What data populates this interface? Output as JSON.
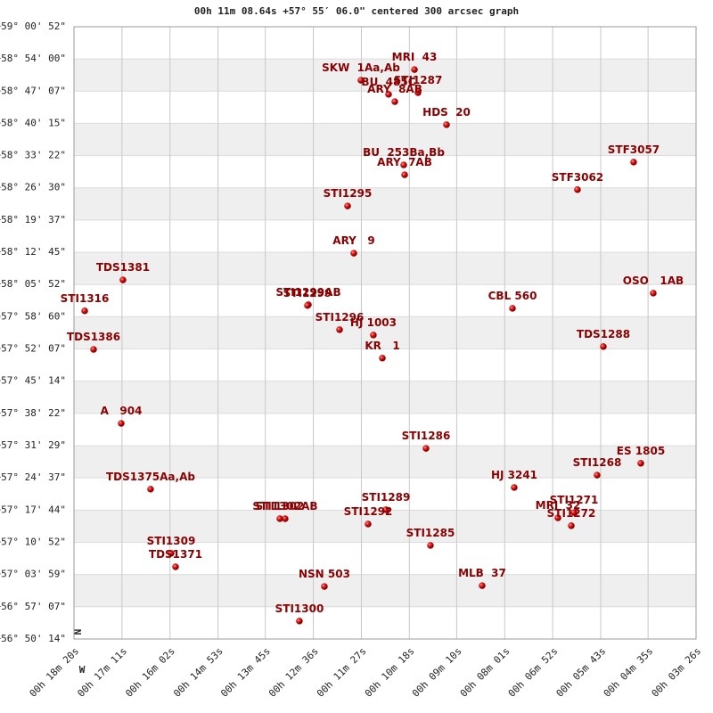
{
  "chart_data": {
    "type": "scatter",
    "title": "00h 11m 08.64s +57° 55′ 06.0\" centered 300 arcsec graph",
    "north_label": "N",
    "west_label": "W",
    "color": "#cc0000",
    "label_color": "#8b0000",
    "labels": [
      "MRI  43",
      "SKW  1Aa,Ab",
      "BU  485C",
      "STI1287",
      "ARY  8AB",
      "HDS  20",
      "BU  253Ba,Bb",
      "ARY  7AB",
      "STF3057",
      "STF3062",
      "STI1295",
      "ARY   9",
      "TDS1381",
      "OSO   1AB",
      "STI1316",
      "STI1299AB",
      "STI1299",
      "CBL 560",
      "STI1296",
      "HJ 1003",
      "KR   1",
      "TDS1288",
      "TDS1386",
      "A   904",
      "STI1286",
      "ES 1805",
      "STI1268",
      "HJ 3241",
      "TDS1375Aa,Ab",
      "STI1289",
      "STI1271",
      "MRI  32",
      "STI1272",
      "STI1302AB",
      "STI1302",
      "STI1292",
      "STI1285",
      "STI1309",
      "TDS1371",
      "NSN 503",
      "MLB  37",
      "STI1300"
    ],
    "x": [
      610.7,
      687.6,
      647.9,
      605.6,
      638.9,
      564.6,
      626.1,
      624.8,
      295.7,
      376.4,
      706.8,
      697.8,
      1029.6,
      267.5,
      1084.6,
      763.1,
      764.4,
      469.8,
      718.3,
      669.7,
      656.8,
      339.2,
      1071.8,
      1032.1,
      594.1,
      285.4,
      348.2,
      467.3,
      989.9,
      651.7,
      381.5,
      404.5,
      385.3,
      796.5,
      804.1,
      677.3,
      587.7,
      960.4,
      954.0,
      740.1,
      513.4,
      776.0
    ],
    "values": [
      58.862,
      58.824,
      58.774,
      58.78,
      58.748,
      58.666,
      58.523,
      58.488,
      58.533,
      58.435,
      58.377,
      58.209,
      58.114,
      58.067,
      58.004,
      58.026,
      58.023,
      58.013,
      57.937,
      57.918,
      57.836,
      57.877,
      57.867,
      57.604,
      57.515,
      57.462,
      57.42,
      57.376,
      57.37,
      57.297,
      57.287,
      57.268,
      57.24,
      57.265,
      57.265,
      57.246,
      57.17,
      57.142,
      57.094,
      57.024,
      57.027,
      56.901
    ],
    "xlim": [
      1100,
      206
    ],
    "xticks": [
      {
        "value": 1100,
        "label": "00h 18m 20s"
      },
      {
        "value": 1031,
        "label": "00h 17m 11s"
      },
      {
        "value": 962,
        "label": "00h 16m 02s"
      },
      {
        "value": 893,
        "label": "00h 14m 53s"
      },
      {
        "value": 825,
        "label": "00h 13m 45s"
      },
      {
        "value": 756,
        "label": "00h 12m 36s"
      },
      {
        "value": 687,
        "label": "00h 11m 27s"
      },
      {
        "value": 618,
        "label": "00h 10m 18s"
      },
      {
        "value": 550,
        "label": "00h 09m 10s"
      },
      {
        "value": 481,
        "label": "00h 08m 01s"
      },
      {
        "value": 412,
        "label": "00h 06m 52s"
      },
      {
        "value": 343,
        "label": "00h 05m 43s"
      },
      {
        "value": 275,
        "label": "00h 04m 35s"
      },
      {
        "value": 206,
        "label": "00h 03m 26s"
      }
    ],
    "ylim": [
      56.8372,
      59.0144
    ],
    "yticks": [
      {
        "value": 59.0144,
        "label": "+59° 00' 52\""
      },
      {
        "value": 58.9,
        "label": "+58° 54' 00\""
      },
      {
        "value": 58.7853,
        "label": "+58° 47' 07\""
      },
      {
        "value": 58.6708,
        "label": "+58° 40' 15\""
      },
      {
        "value": 58.5561,
        "label": "+58° 33' 22\""
      },
      {
        "value": 58.4417,
        "label": "+58° 26' 30\""
      },
      {
        "value": 58.3269,
        "label": "+58° 19' 37\""
      },
      {
        "value": 58.2125,
        "label": "+58° 12' 45\""
      },
      {
        "value": 58.0978,
        "label": "+58° 05' 52\""
      },
      {
        "value": 57.9833,
        "label": "+57° 58' 60\""
      },
      {
        "value": 57.8686,
        "label": "+57° 52' 07\""
      },
      {
        "value": 57.7539,
        "label": "+57° 45' 14\""
      },
      {
        "value": 57.6394,
        "label": "+57° 38' 22\""
      },
      {
        "value": 57.5247,
        "label": "+57° 31' 29\""
      },
      {
        "value": 57.4103,
        "label": "+57° 24' 37\""
      },
      {
        "value": 57.2956,
        "label": "+57° 17' 44\""
      },
      {
        "value": 57.1811,
        "label": "+57° 10' 52\""
      },
      {
        "value": 57.0664,
        "label": "+57° 03' 59\""
      },
      {
        "value": 56.9519,
        "label": "+56° 57' 07\""
      },
      {
        "value": 56.8372,
        "label": "+56° 50' 14\""
      }
    ],
    "grid": true
  }
}
